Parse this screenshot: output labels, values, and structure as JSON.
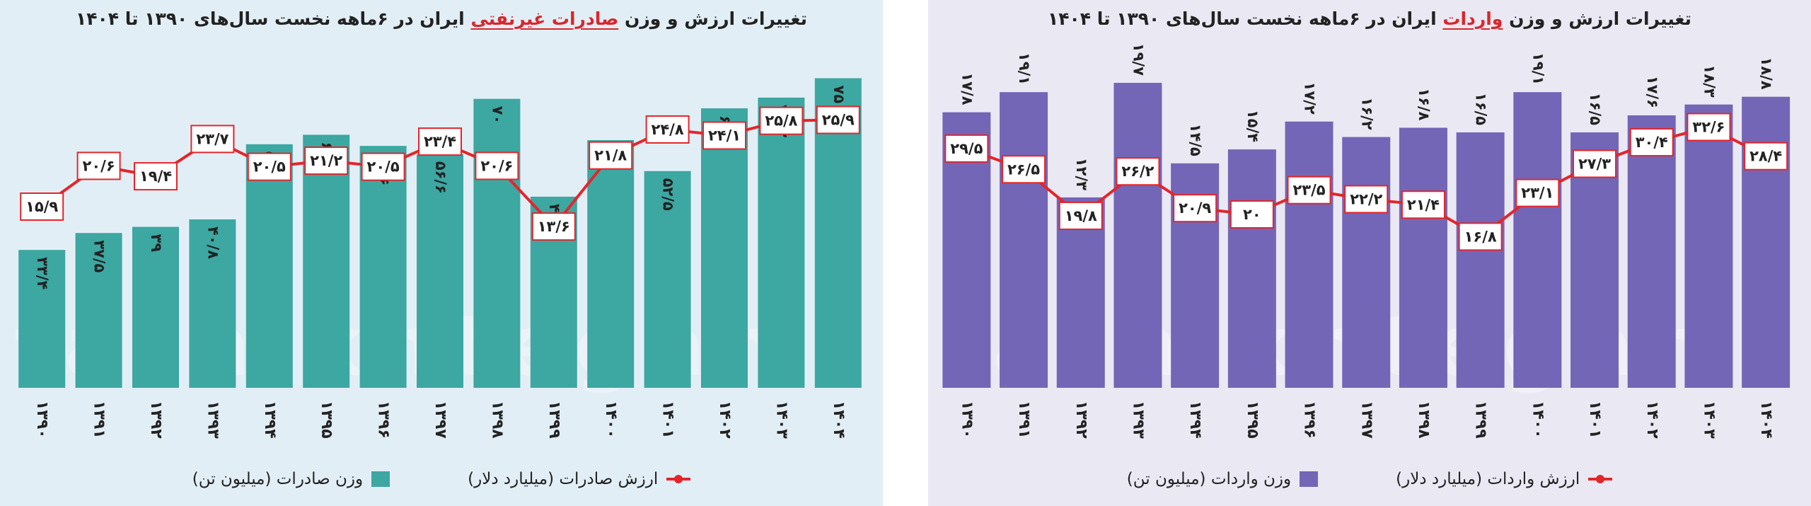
{
  "chart_data": [
    {
      "type": "bar",
      "title_prefix": "تغییرات ارزش و وزن",
      "title_highlight": "صادرات غیرنفتی",
      "title_suffix": "ایران در ۶ماهه نخست سال‌های ۱۳۹۰ تا ۱۴۰۴",
      "categories": [
        "۱۳۹۰",
        "۱۳۹۱",
        "۱۳۹۲",
        "۱۳۹۳",
        "۱۳۹۴",
        "۱۳۹۵",
        "۱۳۹۶",
        "۱۳۹۷",
        "۱۳۹۸",
        "۱۳۹۹",
        "۱۴۰۰",
        "۱۴۰۱",
        "۱۴۰۲",
        "۱۴۰۳",
        "۱۴۰۴"
      ],
      "series": [
        {
          "name": "وزن صادرات (میلیون تن)",
          "kind": "bar",
          "color": "#3da7a2",
          "values": [
            33.4,
            37.5,
            39,
            40.8,
            59,
            61.3,
            58.6,
            56.6,
            70,
            46.3,
            60,
            52.5,
            67.7,
            70.3,
            75
          ],
          "labels": [
            "۳۳/۴",
            "۳۷/۵",
            "۳۹",
            "۴۰/۸",
            "۵۹",
            "۶۱/۳",
            "۵۸/۶",
            "۵۶/۶",
            "۷۰",
            "۴۶/۳",
            "۶۰",
            "۵۲/۵",
            "۶۷/۷",
            "۷۰/۳",
            "۷۵"
          ]
        },
        {
          "name": "ارزش صادرات (میلیارد دلار)",
          "kind": "line",
          "color": "#e2262b",
          "values": [
            15.9,
            20.6,
            19.4,
            23.7,
            20.5,
            21.2,
            20.5,
            23.4,
            20.6,
            13.6,
            21.8,
            24.8,
            24.1,
            25.8,
            25.9
          ],
          "labels": [
            "۱۵/۹",
            "۲۰/۶",
            "۱۹/۴",
            "۲۳/۷",
            "۲۰/۵",
            "۲۱/۲",
            "۲۰/۵",
            "۲۳/۴",
            "۲۰/۶",
            "۱۳/۶",
            "۲۱/۸",
            "۲۴/۸",
            "۲۴/۱",
            "۲۵/۸",
            "۲۵/۹"
          ]
        }
      ],
      "bar_ylim": [
        0,
        84
      ],
      "line_ylim": [
        -5,
        35
      ],
      "legend": {
        "placement": "bottom",
        "bar_label": "وزن صادرات (میلیون تن)",
        "line_label": "ارزش صادرات (میلیارد دلار)"
      },
      "watermark": "farhikhtegan"
    },
    {
      "type": "bar",
      "title_prefix": "تغییرات ارزش و وزن",
      "title_highlight": "واردات",
      "title_suffix": "ایران در ۶ماهه نخست سال‌های ۱۳۹۰ تا ۱۴۰۴",
      "categories": [
        "۱۳۹۰",
        "۱۳۹۱",
        "۱۳۹۲",
        "۱۳۹۳",
        "۱۳۹۴",
        "۱۳۹۵",
        "۱۳۹۶",
        "۱۳۹۷",
        "۱۳۹۸",
        "۱۳۹۹",
        "۱۴۰۰",
        "۱۴۰۱",
        "۱۴۰۲",
        "۱۴۰۳",
        "۱۴۰۴"
      ],
      "series": [
        {
          "name": "وزن واردات (میلیون تن)",
          "kind": "bar",
          "color": "#7366b7",
          "values": [
            17.8,
            19.1,
            12.3,
            19.7,
            14.5,
            15.4,
            17.2,
            16.2,
            16.8,
            16.5,
            19.1,
            16.5,
            17.6,
            18.3,
            18.8
          ],
          "labels": [
            "۱۷/۸",
            "۱۹/۱",
            "۱۲/۳",
            "۱۹/۷",
            "۱۴/۵",
            "۱۵/۴",
            "۱۷/۲",
            "۱۶/۲",
            "۱۶/۸",
            "۱۶/۵",
            "۱۹/۱",
            "۱۶/۵",
            "۱۷/۶",
            "۱۸/۳",
            "۱۸/۸"
          ]
        },
        {
          "name": "ارزش واردات (میلیارد دلار)",
          "kind": "line",
          "color": "#e2262b",
          "values": [
            29.5,
            26.5,
            19.8,
            26.2,
            20.9,
            20,
            23.5,
            22.2,
            21.4,
            16.8,
            23.1,
            27.3,
            30.4,
            32.6,
            28.4
          ],
          "labels": [
            "۲۹/۵",
            "۲۶/۵",
            "۱۹/۸",
            "۲۶/۲",
            "۲۰/۹",
            "۲۰",
            "۲۳/۵",
            "۲۲/۲",
            "۲۱/۴",
            "۱۶/۸",
            "۲۳/۱",
            "۲۷/۳",
            "۳۰/۴",
            "۳۲/۶",
            "۲۸/۴"
          ]
        }
      ],
      "bar_ylim": [
        0,
        22.4
      ],
      "line_ylim": [
        -5,
        45
      ],
      "legend": {
        "placement": "bottom",
        "bar_label": "وزن واردات (میلیون تن)",
        "line_label": "ارزش واردات (میلیارد دلار)"
      },
      "watermark": "farhikhtegan"
    }
  ]
}
